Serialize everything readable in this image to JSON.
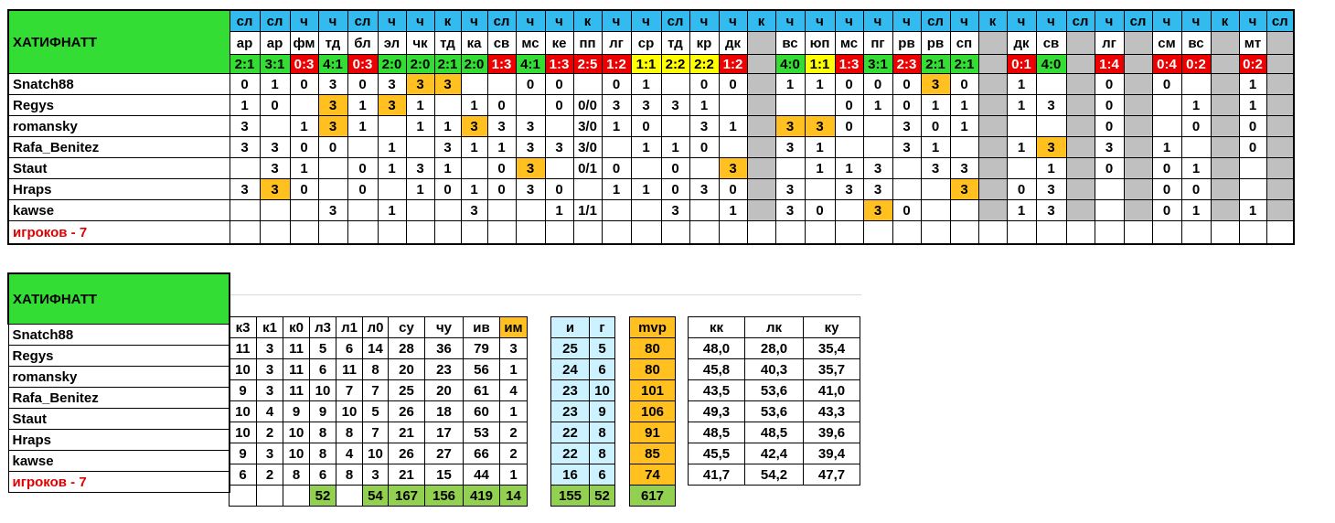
{
  "team": "ХАТИФНАТТ",
  "players_label": "игроков - 7",
  "players": [
    "Snatch88",
    "Regys",
    "romansky",
    "Rafa_Benitez",
    "Staut",
    "Hraps",
    "kawse"
  ],
  "colors": {
    "team_green": "#33dd33",
    "type_blue": "#33bbf0",
    "gap_gray": "#c0c0c0",
    "highlight_orange": "#ffc020",
    "win_green": "#33dd33",
    "draw_yellow": "#ffff00",
    "loss_red": "#ee0000",
    "label_red": "#e00000"
  },
  "matches": [
    {
      "type": "сл",
      "opp": "ар",
      "score": "2:1",
      "res": "w",
      "vals": [
        "0",
        "1",
        "3",
        "3",
        "",
        "3",
        ""
      ]
    },
    {
      "type": "сл",
      "opp": "ар",
      "score": "3:1",
      "res": "w",
      "vals": [
        "1",
        "0",
        "",
        "3",
        "3",
        "3",
        ""
      ],
      "hi": [
        5
      ]
    },
    {
      "type": "ч",
      "opp": "фм",
      "score": "0:3",
      "res": "l",
      "vals": [
        "0",
        "",
        "1",
        "0",
        "1",
        "0",
        ""
      ]
    },
    {
      "type": "ч",
      "opp": "тд",
      "score": "4:1",
      "res": "w",
      "vals": [
        "3",
        "3",
        "3",
        "0",
        "",
        "",
        "3"
      ],
      "hi": [
        1,
        2
      ]
    },
    {
      "type": "сл",
      "opp": "бл",
      "score": "0:3",
      "res": "l",
      "vals": [
        "0",
        "1",
        "1",
        "",
        "0",
        "0",
        ""
      ]
    },
    {
      "type": "ч",
      "opp": "эл",
      "score": "2:0",
      "res": "w",
      "vals": [
        "3",
        "3",
        "",
        "1",
        "1",
        "",
        "1"
      ],
      "hi": [
        1
      ]
    },
    {
      "type": "ч",
      "opp": "чк",
      "score": "2:0",
      "res": "w",
      "vals": [
        "3",
        "1",
        "1",
        "",
        "3",
        "1",
        ""
      ],
      "hi": [
        0
      ]
    },
    {
      "type": "к",
      "opp": "тд",
      "score": "2:1",
      "res": "w",
      "vals": [
        "3",
        "",
        "1",
        "3",
        "1",
        "0",
        ""
      ],
      "hi": [
        0
      ]
    },
    {
      "type": "ч",
      "opp": "ка",
      "score": "2:0",
      "res": "w",
      "vals": [
        "",
        "1",
        "3",
        "1",
        "",
        "1",
        "3"
      ],
      "hi": [
        2
      ]
    },
    {
      "type": "сл",
      "opp": "св",
      "score": "1:3",
      "res": "l",
      "vals": [
        "",
        "0",
        "3",
        "1",
        "0",
        "0",
        ""
      ]
    },
    {
      "type": "ч",
      "opp": "мс",
      "score": "4:1",
      "res": "w",
      "vals": [
        "0",
        "",
        "3",
        "3",
        "3",
        "3",
        ""
      ],
      "hi": [
        4
      ]
    },
    {
      "type": "ч",
      "opp": "ке",
      "score": "1:3",
      "res": "l",
      "vals": [
        "0",
        "0",
        "",
        "3",
        "",
        "0",
        "1"
      ]
    },
    {
      "type": "к",
      "opp": "пп",
      "score": "2:5",
      "res": "l",
      "vals": [
        "",
        "0/0",
        "3/0",
        "3/0",
        "0/1",
        "",
        "1/1"
      ]
    },
    {
      "type": "ч",
      "opp": "лг",
      "score": "1:2",
      "res": "l",
      "vals": [
        "0",
        "3",
        "1",
        "",
        "0",
        "1",
        ""
      ]
    },
    {
      "type": "ч",
      "opp": "ср",
      "score": "1:1",
      "res": "d",
      "vals": [
        "1",
        "3",
        "0",
        "1",
        "",
        "1",
        ""
      ]
    },
    {
      "type": "сл",
      "opp": "тд",
      "score": "2:2",
      "res": "d",
      "vals": [
        "",
        "3",
        "",
        "1",
        "0",
        "0",
        "3"
      ]
    },
    {
      "type": "ч",
      "opp": "кр",
      "score": "2:2",
      "res": "d",
      "vals": [
        "0",
        "1",
        "3",
        "0",
        "",
        "3",
        ""
      ]
    },
    {
      "type": "ч",
      "opp": "дк",
      "score": "1:2",
      "res": "l",
      "vals": [
        "0",
        "",
        "1",
        "",
        "3",
        "0",
        "1"
      ],
      "hi": [
        4
      ]
    },
    {
      "type": "к",
      "opp": "",
      "score": "",
      "res": "gap",
      "vals": [
        "",
        "",
        "",
        "",
        "",
        "",
        ""
      ]
    },
    {
      "type": "ч",
      "opp": "вс",
      "score": "4:0",
      "res": "w",
      "vals": [
        "1",
        "",
        "3",
        "3",
        "",
        "3",
        "3"
      ],
      "hi": [
        2
      ]
    },
    {
      "type": "ч",
      "opp": "юп",
      "score": "1:1",
      "res": "d",
      "vals": [
        "1",
        "",
        "3",
        "1",
        "1",
        "",
        "0"
      ],
      "hi": [
        2
      ]
    },
    {
      "type": "ч",
      "opp": "мс",
      "score": "1:3",
      "res": "l",
      "vals": [
        "0",
        "0",
        "0",
        "",
        "1",
        "3",
        ""
      ]
    },
    {
      "type": "ч",
      "opp": "пг",
      "score": "3:1",
      "res": "w",
      "vals": [
        "0",
        "1",
        "",
        "",
        "3",
        "3",
        "3"
      ],
      "hi": [
        6
      ]
    },
    {
      "type": "ч",
      "opp": "рв",
      "score": "2:3",
      "res": "l",
      "vals": [
        "0",
        "0",
        "3",
        "3",
        "",
        "",
        "0"
      ]
    },
    {
      "type": "сл",
      "opp": "рв",
      "score": "2:1",
      "res": "w",
      "vals": [
        "3",
        "1",
        "0",
        "1",
        "3",
        "",
        ""
      ],
      "hi": [
        0
      ]
    },
    {
      "type": "ч",
      "opp": "сп",
      "score": "2:1",
      "res": "w",
      "vals": [
        "0",
        "1",
        "1",
        "",
        "3",
        "3",
        ""
      ],
      "hi": [
        5
      ]
    },
    {
      "type": "к",
      "opp": "",
      "score": "",
      "res": "gap",
      "vals": [
        "",
        "",
        "",
        "",
        "",
        "",
        ""
      ]
    },
    {
      "type": "ч",
      "opp": "дк",
      "score": "0:1",
      "res": "l",
      "vals": [
        "1",
        "1",
        "",
        "1",
        "",
        "0",
        "1"
      ]
    },
    {
      "type": "ч",
      "opp": "св",
      "score": "4:0",
      "res": "w",
      "vals": [
        "",
        "3",
        "",
        "3",
        "1",
        "3",
        "3"
      ],
      "hi": [
        3
      ]
    },
    {
      "type": "сл",
      "opp": "",
      "score": "",
      "res": "gap",
      "vals": [
        "",
        "",
        "",
        "",
        "",
        "",
        ""
      ]
    },
    {
      "type": "ч",
      "opp": "лг",
      "score": "1:4",
      "res": "l",
      "vals": [
        "0",
        "0",
        "0",
        "3",
        "0",
        "",
        ""
      ]
    },
    {
      "type": "сл",
      "opp": "",
      "score": "",
      "res": "gap",
      "vals": [
        "",
        "",
        "",
        "",
        "",
        "",
        ""
      ]
    },
    {
      "type": "ч",
      "opp": "см",
      "score": "0:4",
      "res": "l",
      "vals": [
        "0",
        "",
        "",
        "1",
        "0",
        "0",
        "0"
      ]
    },
    {
      "type": "ч",
      "opp": "вс",
      "score": "0:2",
      "res": "l",
      "vals": [
        "",
        "1",
        "0",
        "",
        "1",
        "0",
        "1"
      ]
    },
    {
      "type": "к",
      "opp": "",
      "score": "",
      "res": "gap",
      "vals": [
        "",
        "",
        "",
        "",
        "",
        "",
        ""
      ]
    },
    {
      "type": "ч",
      "opp": "мт",
      "score": "0:2",
      "res": "l",
      "vals": [
        "1",
        "1",
        "0",
        "0",
        "",
        "",
        "1"
      ]
    },
    {
      "type": "сл",
      "opp": "",
      "score": "",
      "res": "gap",
      "vals": [
        "",
        "",
        "",
        "",
        "",
        "",
        ""
      ]
    }
  ],
  "stats": {
    "headers": [
      "к3",
      "к1",
      "к0",
      "л3",
      "л1",
      "л0",
      "су",
      "чу",
      "ив",
      "им"
    ],
    "rows": [
      [
        "11",
        "3",
        "11",
        "5",
        "6",
        "14",
        "28",
        "36",
        "79",
        "3"
      ],
      [
        "10",
        "3",
        "11",
        "6",
        "11",
        "8",
        "20",
        "23",
        "56",
        "1"
      ],
      [
        "9",
        "3",
        "11",
        "10",
        "7",
        "7",
        "25",
        "20",
        "61",
        "4"
      ],
      [
        "10",
        "4",
        "9",
        "9",
        "10",
        "5",
        "26",
        "18",
        "60",
        "1"
      ],
      [
        "10",
        "2",
        "10",
        "8",
        "8",
        "7",
        "21",
        "17",
        "53",
        "2"
      ],
      [
        "9",
        "3",
        "10",
        "8",
        "4",
        "10",
        "26",
        "27",
        "66",
        "2"
      ],
      [
        "6",
        "2",
        "8",
        "6",
        "8",
        "3",
        "21",
        "15",
        "44",
        "1"
      ]
    ],
    "totals": [
      "",
      "",
      "",
      "52",
      "",
      "54",
      "167",
      "156",
      "419",
      "14"
    ]
  },
  "ig": {
    "headers": [
      "и",
      "г"
    ],
    "rows": [
      [
        "25",
        "5"
      ],
      [
        "24",
        "6"
      ],
      [
        "23",
        "10"
      ],
      [
        "23",
        "9"
      ],
      [
        "22",
        "8"
      ],
      [
        "22",
        "8"
      ],
      [
        "16",
        "6"
      ]
    ],
    "totals": [
      "155",
      "52"
    ]
  },
  "mvp": {
    "header": "mvp",
    "rows": [
      "80",
      "80",
      "101",
      "106",
      "91",
      "85",
      "74"
    ],
    "total": "617"
  },
  "coef": {
    "headers": [
      "кк",
      "лк",
      "ку"
    ],
    "rows": [
      [
        "48,0",
        "28,0",
        "35,4"
      ],
      [
        "45,8",
        "40,3",
        "35,7"
      ],
      [
        "43,5",
        "53,6",
        "41,0"
      ],
      [
        "49,3",
        "53,6",
        "43,3"
      ],
      [
        "48,5",
        "48,5",
        "39,6"
      ],
      [
        "45,5",
        "42,4",
        "39,4"
      ],
      [
        "41,7",
        "54,2",
        "47,7"
      ]
    ]
  }
}
